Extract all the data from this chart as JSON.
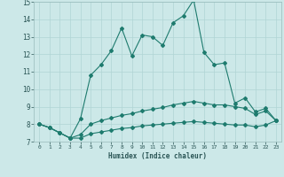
{
  "title": "",
  "xlabel": "Humidex (Indice chaleur)",
  "xlim": [
    -0.5,
    23.5
  ],
  "ylim": [
    7,
    15
  ],
  "xticks": [
    0,
    1,
    2,
    3,
    4,
    5,
    6,
    7,
    8,
    9,
    10,
    11,
    12,
    13,
    14,
    15,
    16,
    17,
    18,
    19,
    20,
    21,
    22,
    23
  ],
  "yticks": [
    7,
    8,
    9,
    10,
    11,
    12,
    13,
    14,
    15
  ],
  "bg_color": "#cce8e8",
  "grid_color": "#b0d4d4",
  "line_color": "#1e7b6e",
  "line1_x": [
    0,
    1,
    2,
    3,
    4,
    5,
    6,
    7,
    8,
    9,
    10,
    11,
    12,
    13,
    14,
    15,
    16,
    17,
    18,
    19,
    20,
    21,
    22,
    23
  ],
  "line1_y": [
    8.0,
    7.8,
    7.5,
    7.2,
    8.3,
    10.8,
    11.4,
    12.2,
    13.5,
    11.9,
    13.1,
    13.0,
    12.5,
    13.8,
    14.2,
    15.1,
    12.1,
    11.4,
    11.5,
    9.2,
    9.5,
    8.7,
    8.9,
    8.2
  ],
  "line2_x": [
    0,
    1,
    2,
    3,
    4,
    5,
    6,
    7,
    8,
    9,
    10,
    11,
    12,
    13,
    14,
    15,
    16,
    17,
    18,
    19,
    20,
    21,
    22,
    23
  ],
  "line2_y": [
    8.0,
    7.8,
    7.5,
    7.2,
    7.4,
    8.0,
    8.2,
    8.35,
    8.5,
    8.6,
    8.75,
    8.85,
    8.95,
    9.1,
    9.2,
    9.3,
    9.2,
    9.1,
    9.1,
    9.0,
    8.9,
    8.55,
    8.75,
    8.2
  ],
  "line3_x": [
    0,
    1,
    2,
    3,
    4,
    5,
    6,
    7,
    8,
    9,
    10,
    11,
    12,
    13,
    14,
    15,
    16,
    17,
    18,
    19,
    20,
    21,
    22,
    23
  ],
  "line3_y": [
    8.0,
    7.8,
    7.5,
    7.2,
    7.2,
    7.45,
    7.55,
    7.65,
    7.75,
    7.8,
    7.9,
    7.95,
    8.0,
    8.05,
    8.1,
    8.15,
    8.1,
    8.05,
    8.0,
    7.95,
    7.95,
    7.85,
    7.95,
    8.2
  ],
  "marker": "D",
  "marker_size": 2.0,
  "linewidth": 0.8
}
